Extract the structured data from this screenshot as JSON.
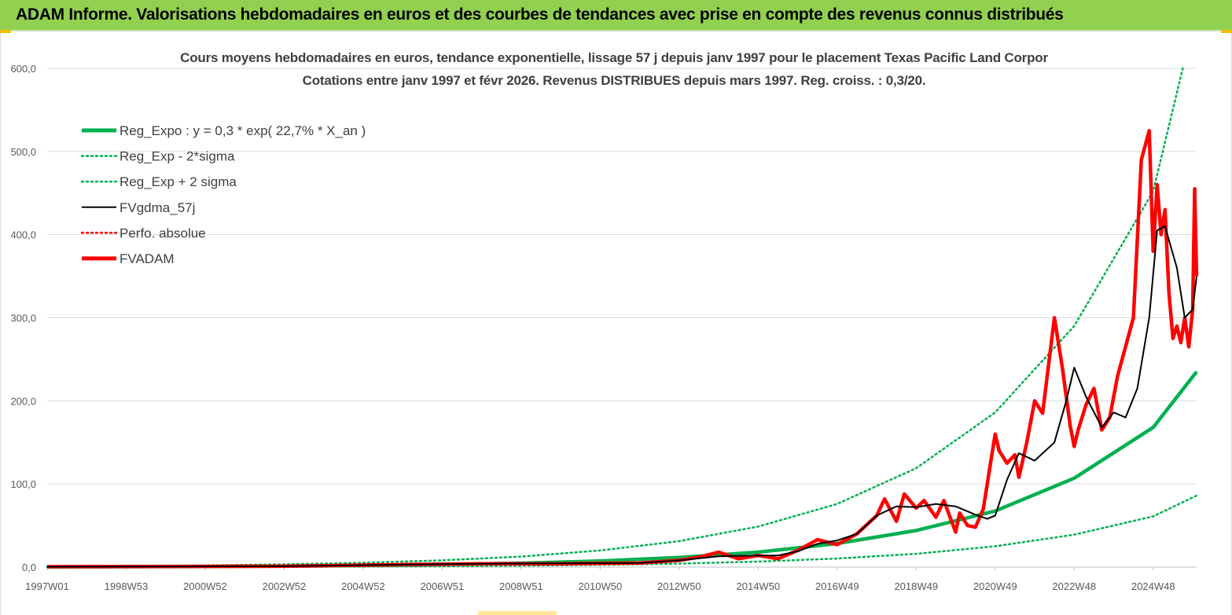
{
  "header": {
    "banner_title": "ADAM Informe. Valorisations hebdomadaires en euros et des courbes de tendances avec prise en compte des revenus connus distribués"
  },
  "colors": {
    "banner_bg": "#92d050",
    "trend_green": "#00b050",
    "fvgdma_black": "#000000",
    "fvadam_red": "#ff0000",
    "grid": "#d9d9d9",
    "axis_text": "#595959"
  },
  "chart_data": {
    "type": "line",
    "title": "Cours moyens hebdomadaires en euros, tendance exponentielle, lissage 57 j depuis janv 1997 pour le placement Texas Pacific Land Corpor",
    "subtitle": "Cotations entre janv 1997 et févr 2026. Revenus DISTRIBUES depuis mars 1997. Reg. croiss. : 0,3/20.",
    "xlabel": "",
    "ylabel": "",
    "x_ticks": [
      {
        "label": "1997W01",
        "t": 1997.0
      },
      {
        "label": "1998W53",
        "t": 1999.0
      },
      {
        "label": "2000W52",
        "t": 2001.0
      },
      {
        "label": "2002W52",
        "t": 2003.0
      },
      {
        "label": "2004W52",
        "t": 2005.0
      },
      {
        "label": "2006W51",
        "t": 2007.0
      },
      {
        "label": "2008W51",
        "t": 2009.0
      },
      {
        "label": "2010W50",
        "t": 2011.0
      },
      {
        "label": "2012W50",
        "t": 2013.0
      },
      {
        "label": "2014W50",
        "t": 2015.0
      },
      {
        "label": "2016W49",
        "t": 2017.0
      },
      {
        "label": "2018W49",
        "t": 2019.0
      },
      {
        "label": "2020W49",
        "t": 2021.0
      },
      {
        "label": "2022W48",
        "t": 2023.0
      },
      {
        "label": "2024W48",
        "t": 2025.0
      }
    ],
    "x_range": [
      1997.0,
      2026.1
    ],
    "ylim": [
      0,
      600
    ],
    "y_ticks": [
      "0,0",
      "100,0",
      "200,0",
      "300,0",
      "400,0",
      "500,0",
      "600,0"
    ],
    "y_tick_values": [
      0,
      100,
      200,
      300,
      400,
      500,
      600
    ],
    "grid": true,
    "legend_position": "top-left",
    "legend": [
      {
        "name": "Reg_Expo : y = 0,3 * exp( 22,7% *  X_an )",
        "style": "solid-thick",
        "color": "#00b050"
      },
      {
        "name": "Reg_Exp - 2*sigma",
        "style": "dotted",
        "color": "#00b050"
      },
      {
        "name": "Reg_Exp + 2 sigma",
        "style": "dotted",
        "color": "#00b050"
      },
      {
        "name": "FVgdma_57j",
        "style": "solid",
        "color": "#000000"
      },
      {
        "name": "Perfo. absolue",
        "style": "dotted",
        "color": "#ff0000"
      },
      {
        "name": "FVADAM",
        "style": "solid-thick",
        "color": "#ff0000"
      }
    ],
    "series": [
      {
        "name": "Reg_Expo : y = 0,3 * exp( 22,7% *  X_an )",
        "x": [
          1997,
          1999,
          2001,
          2003,
          2005,
          2007,
          2009,
          2011,
          2013,
          2015,
          2017,
          2019,
          2021,
          2023,
          2025,
          2026.1
        ],
        "values": [
          0.3,
          0.5,
          0.8,
          1.2,
          1.9,
          3.0,
          4.7,
          7.4,
          11.5,
          18.0,
          28.3,
          44.0,
          67.5,
          107.0,
          168.0,
          235.0
        ]
      },
      {
        "name": "Reg_Exp - 2*sigma",
        "x": [
          1997,
          1999,
          2001,
          2003,
          2005,
          2007,
          2009,
          2011,
          2013,
          2015,
          2017,
          2019,
          2021,
          2023,
          2025,
          2026.1
        ],
        "values": [
          0.1,
          0.2,
          0.3,
          0.4,
          0.7,
          1.1,
          1.7,
          2.7,
          4.2,
          6.6,
          10.3,
          16.0,
          25.0,
          39.0,
          61.0,
          86.0
        ]
      },
      {
        "name": "Reg_Exp + 2 sigma",
        "x": [
          1997,
          1999,
          2001,
          2003,
          2005,
          2007,
          2009,
          2011,
          2013,
          2015,
          2017,
          2019,
          2021,
          2023,
          2025,
          2025.75
        ],
        "values": [
          0.8,
          1.3,
          2.1,
          3.3,
          5.2,
          8.1,
          12.7,
          20.0,
          31.2,
          48.8,
          76.0,
          119.0,
          186.0,
          290.0,
          452.0,
          600.0
        ]
      },
      {
        "name": "FVgdma_57j",
        "x": [
          1997,
          2003,
          2006,
          2008,
          2010,
          2012,
          2013,
          2014,
          2015,
          2015.5,
          2016,
          2016.5,
          2017,
          2017.5,
          2018,
          2018.5,
          2019,
          2019.5,
          2020,
          2020.5,
          2020.8,
          2021,
          2021.3,
          2021.6,
          2022,
          2022.5,
          2022.8,
          2023,
          2023.3,
          2023.7,
          2024,
          2024.3,
          2024.6,
          2024.9,
          2025.1,
          2025.3,
          2025.6,
          2025.8,
          2026,
          2026.1
        ],
        "values": [
          0.5,
          1.0,
          3.0,
          4.0,
          4.5,
          5.0,
          8.0,
          13.0,
          14.0,
          14.0,
          19.0,
          28.0,
          32.0,
          40.0,
          62.0,
          73.0,
          72.0,
          76.0,
          73.0,
          63.0,
          58.0,
          62.0,
          105.0,
          137.0,
          128.0,
          150.0,
          200.0,
          240.0,
          205.0,
          168.0,
          186.0,
          180.0,
          215.0,
          300.0,
          405.0,
          410.0,
          360.0,
          300.0,
          310.0,
          350.0
        ]
      },
      {
        "name": "FVADAM",
        "x": [
          1997,
          2003,
          2006,
          2008,
          2010,
          2012,
          2013,
          2013.5,
          2014,
          2014.5,
          2015,
          2015.5,
          2016,
          2016.5,
          2017,
          2017.5,
          2018,
          2018.2,
          2018.5,
          2018.7,
          2019,
          2019.2,
          2019.5,
          2019.7,
          2020,
          2020.1,
          2020.3,
          2020.5,
          2020.7,
          2020.9,
          2021,
          2021.1,
          2021.3,
          2021.5,
          2021.6,
          2021.8,
          2022,
          2022.2,
          2022.5,
          2022.7,
          2022.9,
          2023,
          2023.1,
          2023.3,
          2023.5,
          2023.7,
          2023.9,
          2024.1,
          2024.3,
          2024.5,
          2024.7,
          2024.9,
          2025.0,
          2025.1,
          2025.2,
          2025.3,
          2025.4,
          2025.5,
          2025.6,
          2025.7,
          2025.8,
          2025.9,
          2026.0,
          2026.05,
          2026.1
        ],
        "values": [
          0.5,
          1.0,
          3.0,
          4.0,
          4.0,
          5.0,
          8.0,
          12.0,
          18.0,
          10.0,
          14.0,
          10.0,
          20.0,
          33.0,
          27.0,
          40.0,
          62.0,
          82.0,
          55.0,
          88.0,
          71.0,
          80.0,
          60.0,
          80.0,
          42.0,
          65.0,
          50.0,
          48.0,
          70.0,
          130.0,
          160.0,
          140.0,
          125.0,
          135.0,
          108.0,
          150.0,
          200.0,
          185.0,
          300.0,
          240.0,
          170.0,
          145.0,
          165.0,
          195.0,
          215.0,
          165.0,
          180.0,
          230.0,
          265.0,
          300.0,
          490.0,
          525.0,
          380.0,
          460.0,
          400.0,
          430.0,
          330.0,
          275.0,
          290.0,
          270.0,
          300.0,
          265.0,
          310.0,
          455.0,
          350.0
        ]
      }
    ]
  }
}
